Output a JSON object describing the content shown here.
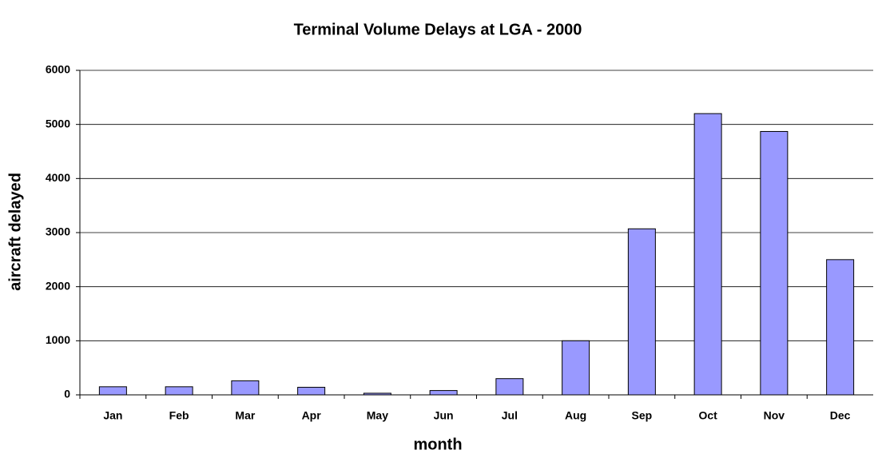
{
  "chart_data": {
    "type": "bar",
    "title": "Terminal Volume Delays at LGA - 2000",
    "x_label": "month",
    "y_label": "aircraft delayed",
    "categories": [
      "Jan",
      "Feb",
      "Mar",
      "Apr",
      "May",
      "Jun",
      "Jul",
      "Aug",
      "Sep",
      "Oct",
      "Nov",
      "Dec"
    ],
    "values": [
      150,
      150,
      260,
      140,
      30,
      80,
      300,
      1000,
      3070,
      5200,
      4870,
      2500
    ],
    "color": "#9999ff",
    "ylim": [
      0,
      6000
    ],
    "yticks": [
      0,
      1000,
      2000,
      3000,
      4000,
      5000,
      6000
    ],
    "grid": true
  }
}
